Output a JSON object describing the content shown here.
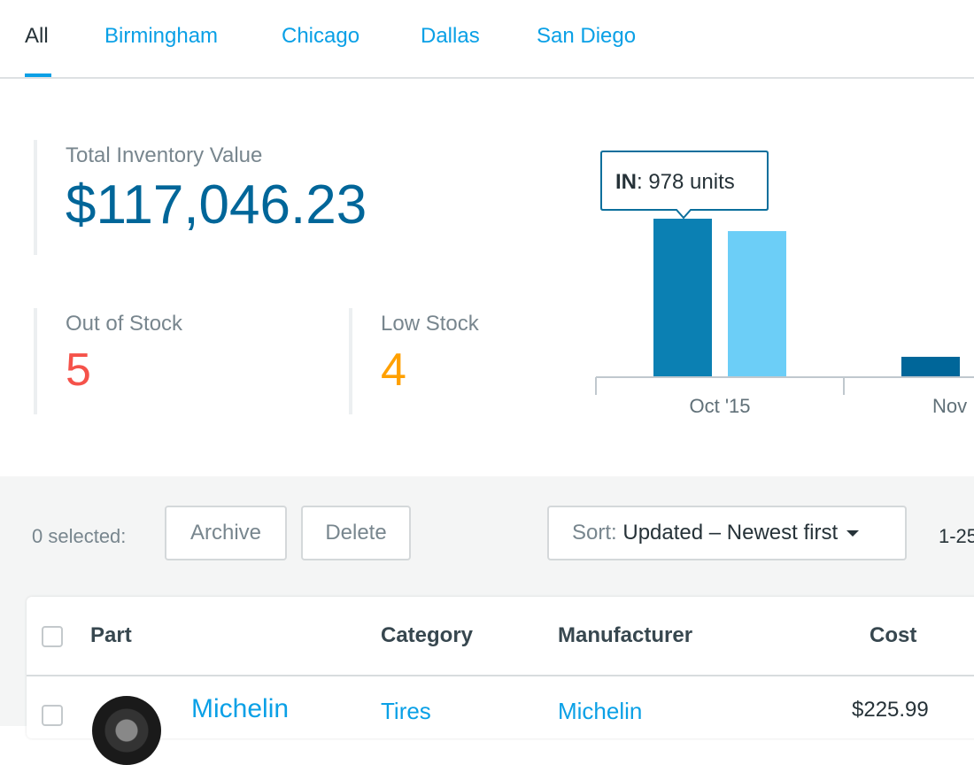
{
  "tabs": [
    {
      "label": "All",
      "active": true
    },
    {
      "label": "Birmingham"
    },
    {
      "label": "Chicago"
    },
    {
      "label": "Dallas"
    },
    {
      "label": "San Diego"
    }
  ],
  "stats": {
    "total": {
      "label": "Total Inventory Value",
      "value": "$117,046.23",
      "color": "#006699"
    },
    "out_of_stock": {
      "label": "Out of Stock",
      "value": "5",
      "color": "#f5524a"
    },
    "low_stock": {
      "label": "Low Stock",
      "value": "4",
      "color": "#ffa000"
    }
  },
  "chart_data": {
    "type": "bar",
    "categories": [
      "Oct '15",
      "Nov"
    ],
    "series": [
      {
        "name": "IN",
        "values": [
          978,
          121
        ],
        "colors": [
          "#0b80b3",
          "#006699"
        ]
      },
      {
        "values": [
          901,
          null
        ],
        "color": "#6ccef7"
      }
    ],
    "tooltip": {
      "label": "IN",
      "text": ": 978 units"
    }
  },
  "toolbar": {
    "selected": "0 selected:",
    "archive": "Archive",
    "delete": "Delete",
    "sort_prefix": "Sort:",
    "sort_value": "Updated – Newest first",
    "pagination": "1-25"
  },
  "table": {
    "headers": [
      "Part",
      "Category",
      "Manufacturer",
      "Cost"
    ],
    "rows": [
      {
        "part": "Michelin",
        "category": "Tires",
        "manufacturer": "Michelin",
        "cost": "$225.99",
        "image": "tire-image"
      }
    ]
  }
}
